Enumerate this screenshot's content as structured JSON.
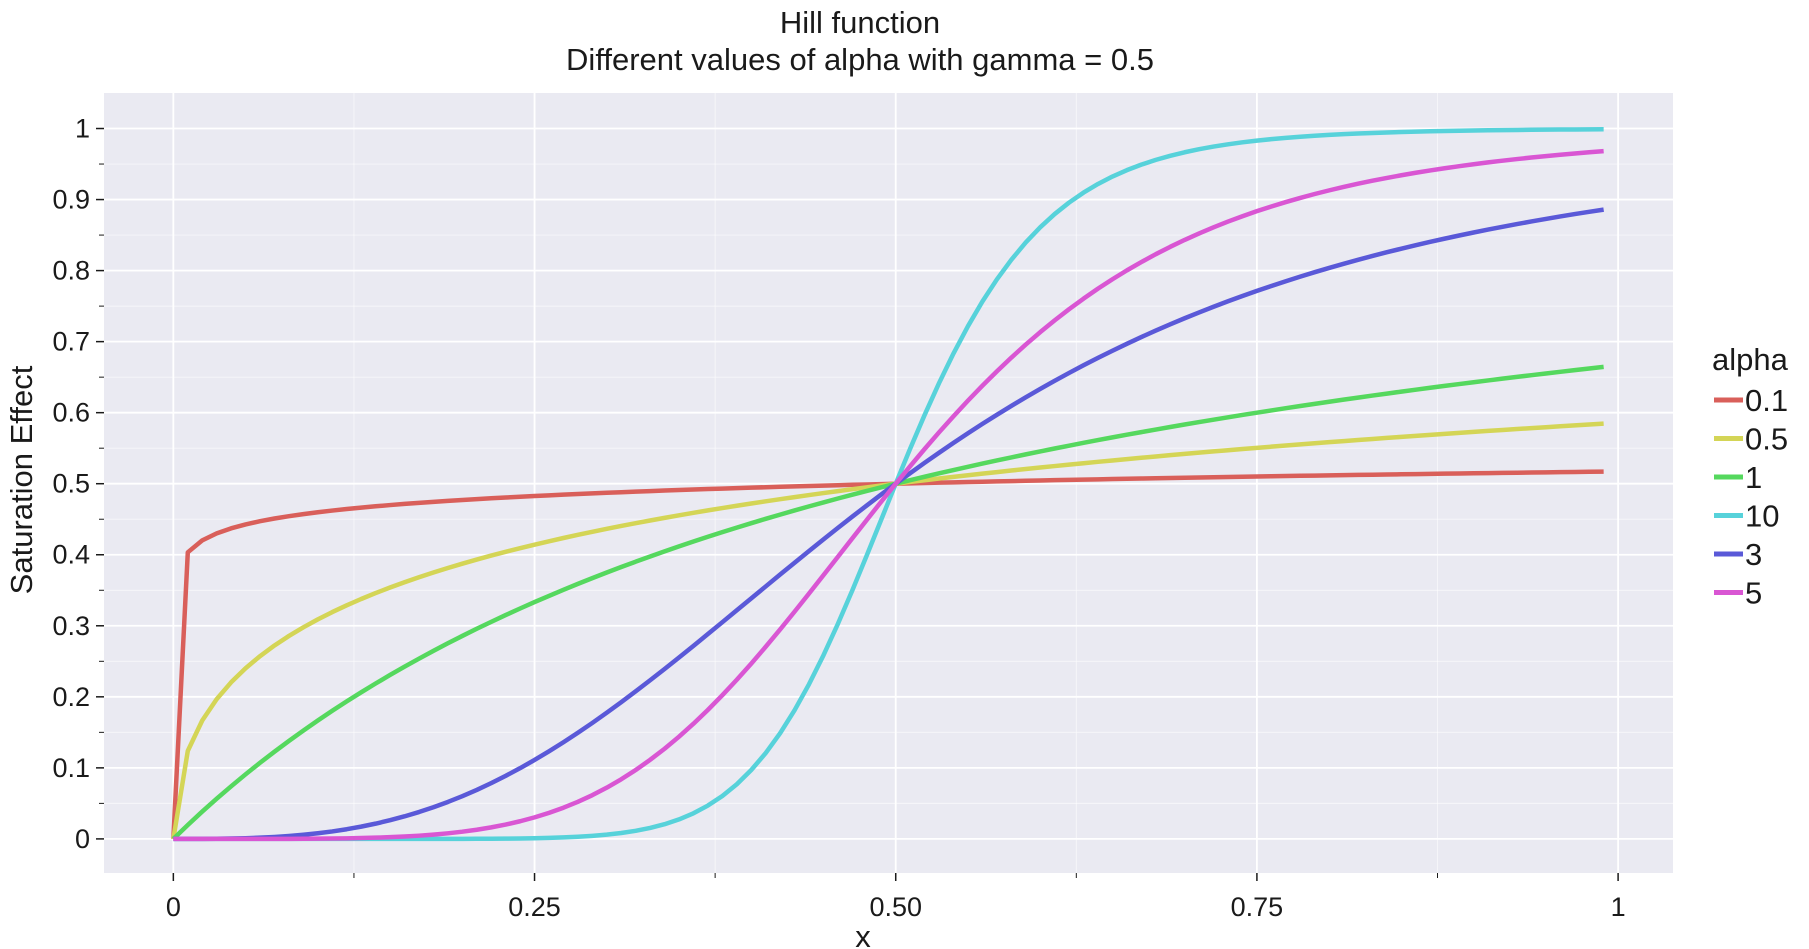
{
  "chart_data": {
    "type": "line",
    "title": "Hill function",
    "subtitle": "Different values of alpha with gamma = 0.5",
    "xlabel": "x",
    "ylabel": "Saturation Effect",
    "xlim": [
      -0.048,
      1.038
    ],
    "ylim": [
      -0.048,
      1.05
    ],
    "x_ticks": [
      0,
      0.25,
      0.5,
      0.75,
      1
    ],
    "x_tick_labels": [
      "0",
      "0.25",
      "0.50",
      "0.75",
      "1"
    ],
    "x_minor_ticks": [
      0.125,
      0.375,
      0.625,
      0.875
    ],
    "y_ticks": [
      0,
      0.1,
      0.2,
      0.3,
      0.4,
      0.5,
      0.6,
      0.7,
      0.8,
      0.9,
      1
    ],
    "y_tick_labels": [
      "0",
      "0.1",
      "0.2",
      "0.3",
      "0.4",
      "0.5",
      "0.6",
      "0.7",
      "0.8",
      "0.9",
      "1"
    ],
    "y_minor_ticks": [
      0.05,
      0.15,
      0.25,
      0.35,
      0.45,
      0.55,
      0.65,
      0.75,
      0.85,
      0.95
    ],
    "grid": true,
    "legend": {
      "title": "alpha",
      "placement": "right"
    },
    "gamma": 0.5,
    "x_range": [
      0,
      0.99
    ],
    "x_step": 0.01,
    "series": [
      {
        "name": "0.1",
        "alpha": 0.1,
        "color": "#D95F5A"
      },
      {
        "name": "0.5",
        "alpha": 0.5,
        "color": "#D4D556"
      },
      {
        "name": "1",
        "alpha": 1,
        "color": "#55D85E"
      },
      {
        "name": "10",
        "alpha": 10,
        "color": "#57D2DA"
      },
      {
        "name": "3",
        "alpha": 3,
        "color": "#5A59D8"
      },
      {
        "name": "5",
        "alpha": 5,
        "color": "#D956D3"
      }
    ],
    "colors": {
      "panel": "#EAEAF2",
      "grid": "#FFFFFF",
      "text": "#1A1A1A"
    }
  }
}
